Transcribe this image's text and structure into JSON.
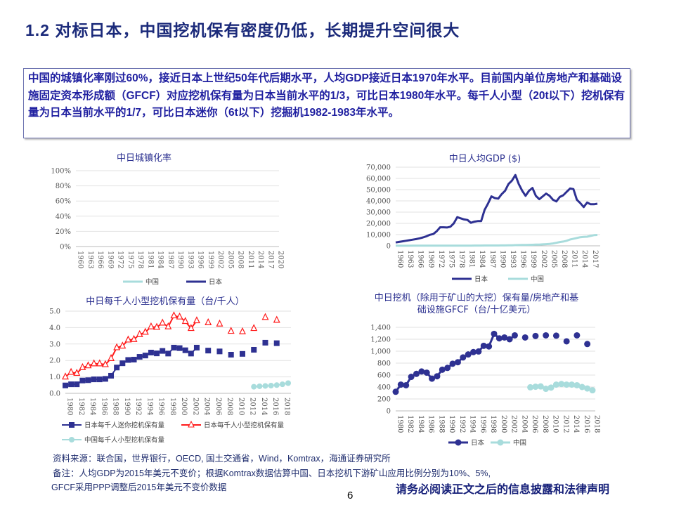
{
  "slide": {
    "title": "1.2 对标日本，中国挖机保有密度仍低，长期提升空间很大",
    "summary": "中国的城镇化率刚过60%，接近日本上世纪50年代后期水平，人均GDP接近日本1970年水平。目前国内单位房地产和基础设施固定资本形成额（GFCF）对应挖机保有量为日本当前水平的1/3，可比日本1980年水平。每千人小型（20t以下）挖机保有量为日本当前水平的1/7，可比日本迷你（6t以下）挖掘机1982-1983年水平。",
    "source": "资料来源：联合国，世界银行，OECD, 国土交通省，Wind，Komtrax，海通证券研究所",
    "note1": "备注：人均GDP为2015年美元不变价；根据Komtrax数据估算中国、日本挖机下游矿山应用比例分别为10%、5%,",
    "note2": "GFCF采用PPP调整后2015年美元不变价数据",
    "disclaimer": "请务必阅读正文之后的信息披露和法律声明",
    "page_number": "6"
  },
  "colors": {
    "japan": "#2e3192",
    "china": "#a8dcdc",
    "japan_small": "#ff1a1a",
    "grid": "#e2e2e2"
  },
  "chart_data": [
    {
      "type": "line",
      "title": "中日城镇化率",
      "ylim": [
        0,
        100
      ],
      "yticks": [
        0,
        20,
        40,
        60,
        80,
        100
      ],
      "ytick_labels": [
        "0%",
        "20%",
        "40%",
        "60%",
        "80%",
        "100%"
      ],
      "xlim": [
        1960,
        2020
      ],
      "x_ticks": [
        1960,
        1963,
        1966,
        1969,
        1972,
        1975,
        1978,
        1981,
        1984,
        1987,
        1990,
        1993,
        1996,
        1999,
        2002,
        2005,
        2008,
        2011,
        2014,
        2017,
        2020
      ],
      "x": [
        1960,
        1963,
        1966,
        1969,
        1972,
        1975,
        1978,
        1981,
        1984,
        1987,
        1990,
        1993,
        1996,
        1999,
        2002,
        2005,
        2008,
        2011,
        2014,
        2017,
        2020
      ],
      "series": [
        {
          "name": "中国",
          "color": "china",
          "marker": "none",
          "values": [
            16,
            18,
            17.5,
            17,
            17,
            17.4,
            17.9,
            20.2,
            23,
            25.3,
            26.4,
            28.5,
            30.5,
            34.8,
            39,
            42.5,
            47,
            51,
            55,
            58,
            61
          ]
        },
        {
          "name": "日本",
          "color": "japan",
          "marker": "none",
          "values": [
            63,
            66,
            69,
            72,
            74,
            76,
            76,
            76.5,
            76.7,
            77,
            77.3,
            77.8,
            78,
            78.5,
            82,
            86,
            89,
            91,
            91.5,
            91.6,
            91.8
          ]
        }
      ],
      "legend_placement": "bottom"
    },
    {
      "type": "line",
      "title": "中日人均GDP ($)",
      "ylim": [
        0,
        70000
      ],
      "yticks": [
        0,
        10000,
        20000,
        30000,
        40000,
        50000,
        60000,
        70000
      ],
      "ytick_labels": [
        "0",
        "10,000",
        "20,000",
        "30,000",
        "40,000",
        "50,000",
        "60,000",
        "70,000"
      ],
      "xlim": [
        1960,
        2019
      ],
      "x_ticks": [
        1960,
        1963,
        1966,
        1969,
        1972,
        1975,
        1978,
        1981,
        1984,
        1987,
        1990,
        1993,
        1996,
        1999,
        2002,
        2005,
        2008,
        2011,
        2014,
        2017
      ],
      "x_start": 1960,
      "series": [
        {
          "name": "日本",
          "color": "japan",
          "marker": "none",
          "values": [
            3000,
            3500,
            4000,
            4500,
            5000,
            5500,
            6000,
            6700,
            7500,
            8500,
            9800,
            10500,
            13000,
            16500,
            16500,
            16300,
            17000,
            20000,
            25500,
            24500,
            23500,
            23000,
            20500,
            21500,
            22000,
            22000,
            32000,
            37500,
            44000,
            42500,
            42000,
            46000,
            49000,
            55000,
            58000,
            63000,
            55000,
            49000,
            44500,
            49000,
            51500,
            44500,
            41500,
            44000,
            46500,
            44500,
            41000,
            39500,
            43500,
            45000,
            48000,
            51000,
            50500,
            41000,
            38000,
            34500,
            38500,
            37000,
            37000,
            37500
          ]
        },
        {
          "name": "中国",
          "color": "china",
          "marker": "none",
          "values": [
            100,
            90,
            80,
            80,
            90,
            100,
            110,
            100,
            100,
            110,
            110,
            120,
            130,
            150,
            160,
            180,
            170,
            180,
            200,
            210,
            200,
            200,
            210,
            230,
            260,
            280,
            290,
            300,
            320,
            320,
            330,
            350,
            390,
            440,
            500,
            600,
            700,
            780,
            830,
            880,
            950,
            1050,
            1150,
            1300,
            1500,
            1750,
            2100,
            2700,
            3400,
            3800,
            4500,
            5600,
            6300,
            7000,
            7700,
            8000,
            8100,
            8800,
            9500,
            9700
          ]
        }
      ],
      "legend_placement": "bottom"
    },
    {
      "type": "line",
      "title": "中日每千人小型挖机保有量（台/千人）",
      "ylim": [
        0,
        5
      ],
      "yticks": [
        0,
        1,
        2,
        3,
        4,
        5
      ],
      "ytick_labels": [
        "0.0",
        "1.0",
        "2.0",
        "3.0",
        "4.0",
        "5.0"
      ],
      "xlim": [
        1980,
        2019
      ],
      "x_ticks": [
        1980,
        1982,
        1984,
        1986,
        1988,
        1990,
        1992,
        1994,
        1996,
        1998,
        2000,
        2002,
        2004,
        2006,
        2008,
        2010,
        2012,
        2014,
        2016,
        2018
      ],
      "series": [
        {
          "name": "日本每千人迷你挖机保有量",
          "color": "japan",
          "marker": "square",
          "x": [
            1980,
            1981,
            1982,
            1983,
            1984,
            1985,
            1986,
            1987,
            1988,
            1989,
            1990,
            1991,
            1992,
            1993,
            1994,
            1995,
            1996,
            1997,
            1998,
            1999,
            2000,
            2001,
            2002,
            2003,
            2005,
            2007,
            2009,
            2011,
            2013,
            2015,
            2017
          ],
          "values": [
            0.48,
            0.55,
            0.55,
            0.78,
            0.8,
            0.85,
            0.85,
            0.88,
            1.07,
            1.57,
            1.83,
            2.03,
            2.05,
            2.22,
            2.3,
            2.48,
            2.43,
            2.58,
            2.42,
            2.78,
            2.75,
            2.62,
            2.42,
            2.78,
            2.6,
            2.55,
            2.35,
            2.4,
            2.65,
            3.08,
            3.05
          ]
        },
        {
          "name": "日本每千人小型挖机保有量",
          "color": "japan_small",
          "marker": "triangle",
          "x": [
            1980,
            1981,
            1982,
            1983,
            1984,
            1985,
            1986,
            1987,
            1988,
            1989,
            1990,
            1991,
            1992,
            1993,
            1994,
            1995,
            1996,
            1997,
            1998,
            1999,
            2000,
            2001,
            2002,
            2003,
            2005,
            2007,
            2009,
            2011,
            2013,
            2015,
            2017
          ],
          "values": [
            1.0,
            1.28,
            1.22,
            1.57,
            1.68,
            1.8,
            1.8,
            1.75,
            2.12,
            2.78,
            2.88,
            3.25,
            3.28,
            3.58,
            3.72,
            4.05,
            4.02,
            4.28,
            4.05,
            4.72,
            4.65,
            4.38,
            3.95,
            4.42,
            4.3,
            4.22,
            3.78,
            3.75,
            3.95,
            4.62,
            4.45
          ]
        },
        {
          "name": "中国每千人小型挖机保有量",
          "color": "china",
          "marker": "circle",
          "x": [
            2013,
            2014,
            2015,
            2016,
            2017,
            2018,
            2019
          ],
          "values": [
            0.4,
            0.43,
            0.45,
            0.47,
            0.5,
            0.55,
            0.62
          ]
        }
      ],
      "legend_placement": "bottom"
    },
    {
      "type": "line",
      "title": "中日挖机（除用于矿山的大挖）保有量/房地产和基础设施GFCF（台/十亿美元）",
      "title_lines": [
        "中日挖机（除用于矿山的大挖）保有量/房地产和基",
        "础设施GFCF（台/十亿美元）"
      ],
      "ylim": [
        0,
        1400
      ],
      "yticks": [
        0,
        200,
        400,
        600,
        800,
        1000,
        1200,
        1400
      ],
      "ytick_labels": [
        "0",
        "200",
        "400",
        "600",
        "800",
        "1,000",
        "1,200",
        "1,400"
      ],
      "xlim": [
        1980,
        2018
      ],
      "x_ticks": [
        1980,
        1982,
        1984,
        1986,
        1988,
        1990,
        1992,
        1994,
        1996,
        1998,
        2000,
        2002,
        2004,
        2006,
        2008,
        2010,
        2012,
        2014,
        2016,
        2018
      ],
      "series": [
        {
          "name": "日本",
          "color": "japan",
          "marker": "circle",
          "x": [
            1980,
            1981,
            1982,
            1983,
            1984,
            1985,
            1986,
            1987,
            1988,
            1989,
            1990,
            1991,
            1992,
            1993,
            1994,
            1995,
            1996,
            1997,
            1998,
            1999,
            2000,
            2001,
            2002,
            2003,
            2005,
            2007,
            2009,
            2011,
            2013,
            2015,
            2017
          ],
          "values": [
            320,
            440,
            430,
            570,
            620,
            660,
            640,
            540,
            580,
            690,
            720,
            790,
            815,
            895,
            945,
            985,
            995,
            1090,
            1080,
            1290,
            1215,
            1230,
            1200,
            1265,
            1230,
            1255,
            1265,
            1260,
            1165,
            1265,
            1120
          ]
        },
        {
          "name": "中国",
          "color": "china",
          "marker": "circle",
          "x": [
            2006,
            2007,
            2008,
            2009,
            2010,
            2011,
            2012,
            2013,
            2014,
            2015,
            2016,
            2017,
            2018
          ],
          "values": [
            395,
            405,
            410,
            370,
            390,
            440,
            450,
            440,
            440,
            430,
            400,
            375,
            345
          ]
        }
      ],
      "legend_placement": "bottom"
    }
  ]
}
